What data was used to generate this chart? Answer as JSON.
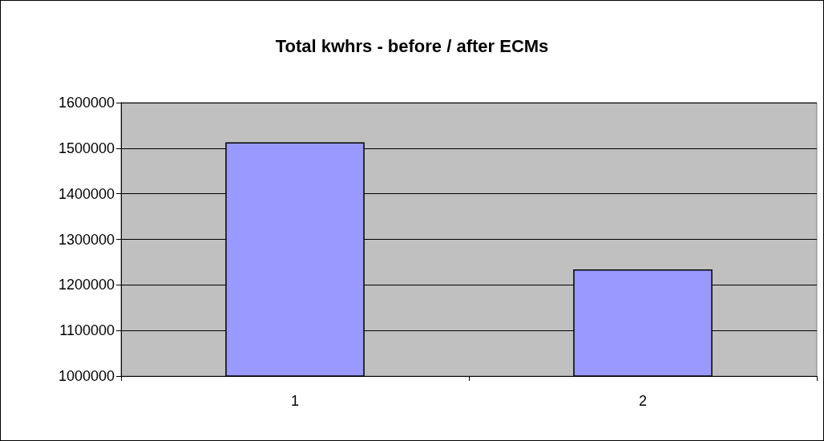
{
  "chart_data": {
    "type": "bar",
    "title": "Total kwhrs - before / after ECMs",
    "categories": [
      "1",
      "2"
    ],
    "values": [
      1513000,
      1234000
    ],
    "color": "#9999ff",
    "ylim": [
      1000000,
      1600000
    ],
    "yticks": [
      1000000,
      1100000,
      1200000,
      1300000,
      1400000,
      1500000,
      1600000
    ],
    "grid": "y"
  }
}
